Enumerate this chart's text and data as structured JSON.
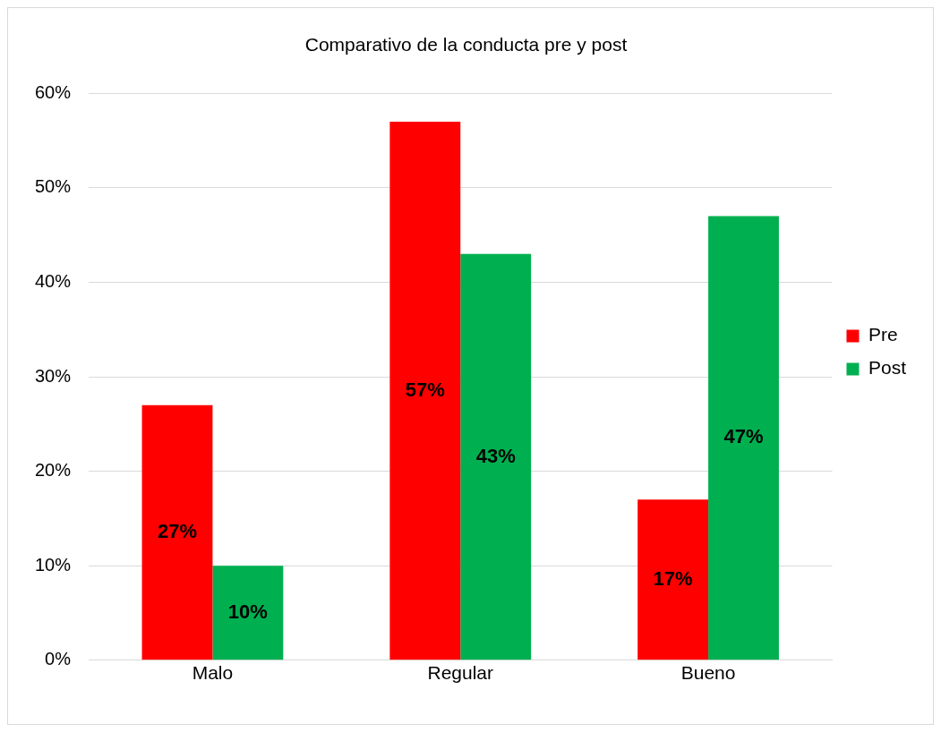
{
  "chart_data": {
    "type": "bar",
    "title": "Comparativo de la conducta pre y post",
    "categories": [
      "Malo",
      "Regular",
      "Bueno"
    ],
    "series": [
      {
        "name": "Pre",
        "color": "#ff0000",
        "values": [
          27,
          57,
          17
        ],
        "value_labels": [
          "27%",
          "57%",
          "17%"
        ]
      },
      {
        "name": "Post",
        "color": "#00b050",
        "values": [
          10,
          43,
          47
        ],
        "value_labels": [
          "10%",
          "43%",
          "47%"
        ]
      }
    ],
    "ylim": [
      0,
      60
    ],
    "yticks": [
      {
        "value": 0,
        "label": "0%"
      },
      {
        "value": 10,
        "label": "10%"
      },
      {
        "value": 20,
        "label": "20%"
      },
      {
        "value": 30,
        "label": "30%"
      },
      {
        "value": 40,
        "label": "40%"
      },
      {
        "value": 50,
        "label": "50%"
      },
      {
        "value": 60,
        "label": "60%"
      }
    ],
    "grid": "y",
    "legend": "right"
  }
}
